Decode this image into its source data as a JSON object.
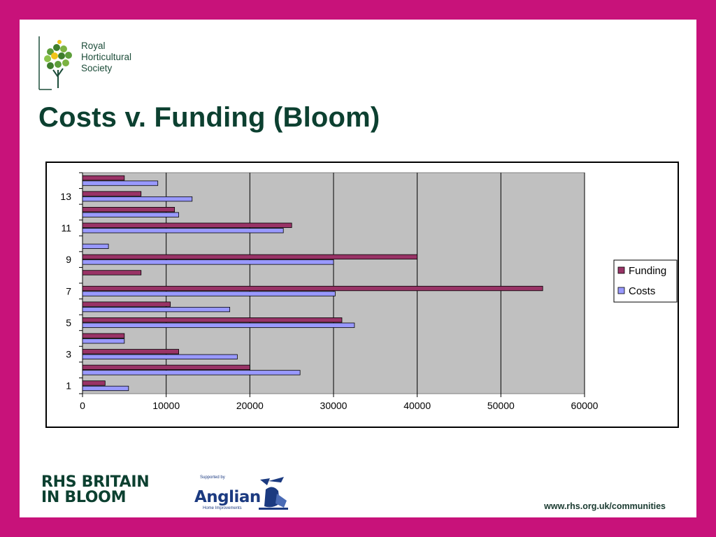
{
  "logo": {
    "lines": [
      "Royal",
      "Horticultural",
      "Society"
    ],
    "icon": "rhs-tree-icon"
  },
  "title": "Costs v. Funding (Bloom)",
  "chart_data": {
    "type": "bar",
    "orientation": "horizontal",
    "title": "",
    "xlabel": "",
    "ylabel": "",
    "categories": [
      "1",
      "2",
      "3",
      "4",
      "5",
      "6",
      "7",
      "8",
      "9",
      "10",
      "11",
      "12",
      "13",
      "14"
    ],
    "category_tick_labels": [
      "1",
      "3",
      "5",
      "7",
      "9",
      "11",
      "13"
    ],
    "xlim": [
      0,
      60000
    ],
    "x_ticks": [
      0,
      10000,
      20000,
      30000,
      40000,
      50000,
      60000
    ],
    "x_tick_labels": [
      "0",
      "10000",
      "20000",
      "30000",
      "40000",
      "50000",
      "60000"
    ],
    "grid": true,
    "legend_position": "right",
    "series": [
      {
        "name": "Funding",
        "color": "#993366",
        "values": [
          2700,
          20000,
          11500,
          5000,
          31000,
          10500,
          55000,
          7000,
          40000,
          0,
          25000,
          11000,
          7000,
          5000
        ]
      },
      {
        "name": "Costs",
        "color": "#9999ff",
        "values": [
          5500,
          26000,
          18500,
          5000,
          32500,
          17600,
          30200,
          0,
          30000,
          3100,
          24000,
          11500,
          13100,
          9000
        ]
      }
    ],
    "plot_background": "#c0c0c0"
  },
  "footer": {
    "bloom_lines": [
      "RHS BRITAIN",
      "IN BLOOM"
    ],
    "supported_by": "Supported by",
    "sponsor": "Anglian",
    "sponsor_sub": "Home Improvements",
    "sponsor_icon": "anglian-knight-icon",
    "url": "www.rhs.org.uk/communities"
  },
  "colors": {
    "frame": "#c8127a",
    "title": "#0c4030"
  }
}
